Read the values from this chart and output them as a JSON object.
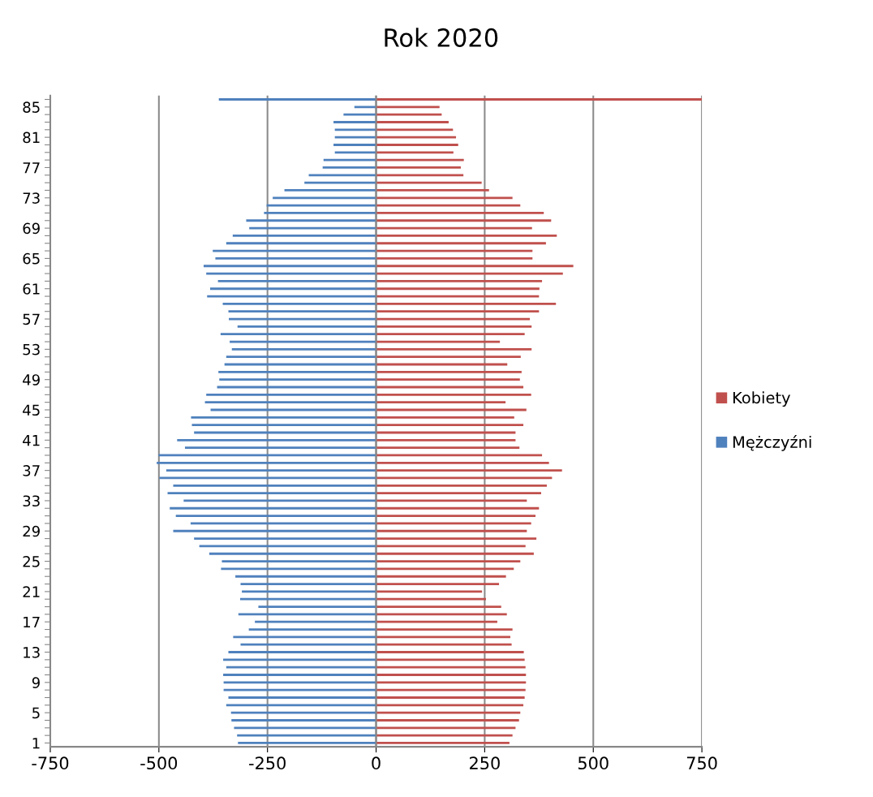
{
  "chart_data": {
    "type": "bar",
    "orientation": "horizontal",
    "title": "Rok 2020",
    "categories": [
      null,
      "85",
      null,
      null,
      null,
      "81",
      null,
      null,
      null,
      "77",
      null,
      null,
      null,
      "73",
      null,
      null,
      null,
      "69",
      null,
      null,
      null,
      "65",
      null,
      null,
      null,
      "61",
      null,
      null,
      null,
      "57",
      null,
      null,
      null,
      "53",
      null,
      null,
      null,
      "49",
      null,
      null,
      null,
      "45",
      null,
      null,
      null,
      "41",
      null,
      null,
      null,
      "37",
      null,
      null,
      null,
      "33",
      null,
      null,
      null,
      "29",
      null,
      null,
      null,
      "25",
      null,
      null,
      null,
      "21",
      null,
      null,
      null,
      "17",
      null,
      null,
      null,
      "13",
      null,
      null,
      null,
      "9",
      null,
      null,
      null,
      "5",
      null,
      null,
      null,
      "1"
    ],
    "series": [
      {
        "name": "Mężczyźni",
        "color": "#4f81bd",
        "values": [
          -362,
          -50,
          -75,
          -98,
          -95,
          -95,
          -98,
          -95,
          -121,
          -123,
          -155,
          -165,
          -211,
          -238,
          -252,
          -258,
          -299,
          -292,
          -330,
          -345,
          -376,
          -370,
          -397,
          -391,
          -364,
          -382,
          -389,
          -353,
          -340,
          -339,
          -319,
          -358,
          -337,
          -332,
          -345,
          -349,
          -363,
          -361,
          -366,
          -391,
          -394,
          -381,
          -426,
          -424,
          -419,
          -458,
          -440,
          -501,
          -505,
          -483,
          -499,
          -467,
          -480,
          -443,
          -475,
          -461,
          -427,
          -467,
          -419,
          -407,
          -384,
          -355,
          -357,
          -324,
          -312,
          -309,
          -313,
          -271,
          -317,
          -279,
          -293,
          -329,
          -312,
          -340,
          -352,
          -345,
          -352,
          -351,
          -351,
          -340,
          -345,
          -334,
          -333,
          -327,
          -320,
          -318
        ]
      },
      {
        "name": "Kobiety",
        "color": "#c0504d",
        "values": [
          750,
          146,
          151,
          167,
          177,
          184,
          189,
          178,
          202,
          195,
          201,
          243,
          260,
          314,
          332,
          386,
          403,
          359,
          416,
          391,
          360,
          360,
          454,
          430,
          382,
          376,
          375,
          414,
          375,
          354,
          358,
          342,
          285,
          358,
          333,
          302,
          335,
          331,
          339,
          357,
          298,
          346,
          318,
          339,
          321,
          321,
          330,
          382,
          398,
          428,
          405,
          393,
          380,
          347,
          375,
          367,
          357,
          347,
          369,
          344,
          363,
          332,
          317,
          299,
          283,
          244,
          253,
          288,
          301,
          279,
          314,
          309,
          312,
          340,
          342,
          344,
          345,
          345,
          344,
          342,
          339,
          332,
          329,
          321,
          314,
          307
        ]
      }
    ],
    "xlim": [
      -750,
      750
    ],
    "xticks": [
      -750,
      -500,
      -250,
      0,
      250,
      500,
      750
    ],
    "grid": "x",
    "legend": "right",
    "stacked": true
  }
}
